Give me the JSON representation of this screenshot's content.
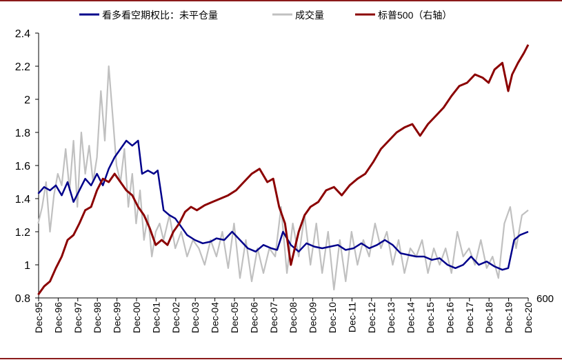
{
  "chart_data": {
    "type": "line",
    "title": "",
    "xlabel": "",
    "ylabel": "",
    "ylim": [
      0.8,
      2.4
    ],
    "yticks": [
      "2.4",
      "2.2",
      "2",
      "1.8",
      "1.6",
      "1.4",
      "1.2",
      "1",
      "0.8"
    ],
    "ytick_values": [
      2.4,
      2.2,
      2.0,
      1.8,
      1.6,
      1.4,
      1.2,
      1.0,
      0.8
    ],
    "secondary_axis_label": "600",
    "x_range": [
      1995.92,
      2020.92
    ],
    "categories": [
      "Dec-95",
      "Dec-96",
      "Dec-97",
      "Dec-98",
      "Dec-99",
      "Dec-00",
      "Dec-01",
      "Dec-02",
      "Dec-03",
      "Dec-04",
      "Dec-05",
      "Dec-06",
      "Dec-07",
      "Dec-08",
      "Dec-09",
      "Dec-10",
      "Dec-11",
      "Dec-12",
      "Dec-13",
      "Dec-14",
      "Dec-15",
      "Dec-16",
      "Dec-17",
      "Dec-18",
      "Dec-19",
      "Dec-20"
    ],
    "category_x": [
      1995.92,
      1996.92,
      1997.92,
      1998.92,
      1999.92,
      2000.92,
      2001.92,
      2002.92,
      2003.92,
      2004.92,
      2005.92,
      2006.92,
      2007.92,
      2008.92,
      2009.92,
      2010.92,
      2011.92,
      2012.92,
      2013.92,
      2014.92,
      2015.92,
      2016.92,
      2017.92,
      2018.92,
      2019.92,
      2020.92
    ],
    "legend_position": "top",
    "series": [
      {
        "name": "看多看空期权比：未平仓量",
        "color": "#00008b",
        "x": [
          1995.9,
          1996.2,
          1996.5,
          1996.8,
          1997.1,
          1997.4,
          1997.7,
          1998.0,
          1998.3,
          1998.6,
          1998.9,
          1999.2,
          1999.5,
          1999.8,
          2000.1,
          2000.4,
          2000.7,
          2001.0,
          2001.2,
          2001.5,
          2001.8,
          2002.0,
          2002.3,
          2002.6,
          2002.9,
          2003.2,
          2003.5,
          2003.9,
          2004.3,
          2004.7,
          2005.0,
          2005.4,
          2005.8,
          2006.2,
          2006.6,
          2007.0,
          2007.4,
          2007.8,
          2008.1,
          2008.4,
          2008.8,
          2009.2,
          2009.6,
          2010.0,
          2010.4,
          2010.8,
          2011.2,
          2011.6,
          2012.0,
          2012.4,
          2012.8,
          2013.2,
          2013.6,
          2014.0,
          2014.4,
          2014.8,
          2015.2,
          2015.6,
          2016.0,
          2016.4,
          2016.8,
          2017.2,
          2017.6,
          2018.0,
          2018.4,
          2018.8,
          2019.2,
          2019.6,
          2019.9,
          2020.2,
          2020.5,
          2020.92
        ],
        "values": [
          1.43,
          1.47,
          1.45,
          1.48,
          1.42,
          1.5,
          1.38,
          1.45,
          1.52,
          1.48,
          1.55,
          1.48,
          1.58,
          1.65,
          1.7,
          1.75,
          1.72,
          1.75,
          1.55,
          1.57,
          1.55,
          1.57,
          1.33,
          1.3,
          1.28,
          1.23,
          1.18,
          1.15,
          1.13,
          1.14,
          1.16,
          1.15,
          1.2,
          1.15,
          1.1,
          1.08,
          1.12,
          1.1,
          1.09,
          1.2,
          1.12,
          1.08,
          1.13,
          1.11,
          1.1,
          1.11,
          1.12,
          1.09,
          1.1,
          1.13,
          1.1,
          1.12,
          1.15,
          1.12,
          1.07,
          1.06,
          1.05,
          1.05,
          1.03,
          1.04,
          1.0,
          0.98,
          1.0,
          1.05,
          1.0,
          1.02,
          0.99,
          0.97,
          0.98,
          1.15,
          1.18,
          1.2
        ]
      },
      {
        "name": "成交量",
        "color": "#c0c0c0",
        "x": [
          1995.9,
          1996.1,
          1996.3,
          1996.5,
          1996.7,
          1996.9,
          1997.1,
          1997.3,
          1997.5,
          1997.7,
          1997.9,
          1998.1,
          1998.3,
          1998.5,
          1998.7,
          1998.9,
          1999.1,
          1999.3,
          1999.5,
          1999.7,
          1999.9,
          2000.1,
          2000.3,
          2000.5,
          2000.7,
          2000.9,
          2001.1,
          2001.3,
          2001.5,
          2001.7,
          2001.9,
          2002.1,
          2002.3,
          2002.6,
          2002.9,
          2003.2,
          2003.5,
          2003.8,
          2004.1,
          2004.4,
          2004.7,
          2005.0,
          2005.3,
          2005.6,
          2005.9,
          2006.2,
          2006.5,
          2006.8,
          2007.1,
          2007.4,
          2007.7,
          2008.0,
          2008.3,
          2008.6,
          2008.9,
          2009.2,
          2009.5,
          2009.8,
          2010.1,
          2010.4,
          2010.7,
          2011.0,
          2011.3,
          2011.6,
          2011.9,
          2012.2,
          2012.5,
          2012.8,
          2013.1,
          2013.4,
          2013.7,
          2014.0,
          2014.3,
          2014.6,
          2014.9,
          2015.2,
          2015.5,
          2015.8,
          2016.1,
          2016.4,
          2016.7,
          2017.0,
          2017.3,
          2017.6,
          2017.9,
          2018.2,
          2018.5,
          2018.8,
          2019.1,
          2019.4,
          2019.7,
          2020.0,
          2020.3,
          2020.6,
          2020.92
        ],
        "values": [
          1.25,
          1.35,
          1.5,
          1.2,
          1.42,
          1.55,
          1.48,
          1.7,
          1.45,
          1.75,
          1.35,
          1.8,
          1.55,
          1.72,
          1.5,
          1.65,
          2.05,
          1.75,
          2.2,
          1.9,
          1.6,
          1.5,
          1.7,
          1.35,
          1.55,
          1.25,
          1.45,
          1.15,
          1.3,
          1.05,
          1.2,
          1.25,
          1.15,
          1.3,
          1.1,
          1.2,
          1.05,
          1.15,
          1.1,
          1.0,
          1.15,
          1.05,
          1.2,
          0.98,
          1.25,
          0.92,
          1.15,
          0.9,
          1.1,
          0.95,
          1.1,
          1.05,
          1.35,
          0.95,
          1.25,
          1.05,
          1.3,
          1.0,
          1.25,
          0.95,
          1.2,
          0.85,
          1.15,
          0.9,
          1.2,
          1.0,
          1.15,
          1.05,
          1.25,
          1.1,
          1.2,
          1.0,
          1.15,
          0.95,
          1.1,
          1.05,
          1.15,
          0.95,
          1.1,
          1.0,
          1.1,
          0.95,
          1.2,
          1.05,
          1.1,
          1.0,
          1.15,
          0.98,
          1.05,
          0.92,
          1.25,
          1.35,
          1.1,
          1.3,
          1.33
        ]
      },
      {
        "name": "标普500（右轴）",
        "color": "#8b0000",
        "x": [
          1995.9,
          1996.2,
          1996.5,
          1996.8,
          1997.1,
          1997.4,
          1997.7,
          1998.0,
          1998.3,
          1998.6,
          1998.9,
          1999.2,
          1999.5,
          1999.8,
          2000.1,
          2000.4,
          2000.7,
          2001.0,
          2001.3,
          2001.6,
          2001.9,
          2002.2,
          2002.5,
          2002.8,
          2003.1,
          2003.4,
          2003.7,
          2004.0,
          2004.4,
          2004.8,
          2005.2,
          2005.6,
          2006.0,
          2006.4,
          2006.8,
          2007.2,
          2007.6,
          2007.9,
          2008.2,
          2008.5,
          2008.8,
          2009.2,
          2009.5,
          2009.8,
          2010.2,
          2010.6,
          2011.0,
          2011.4,
          2011.8,
          2012.2,
          2012.6,
          2013.0,
          2013.4,
          2013.8,
          2014.2,
          2014.6,
          2015.0,
          2015.4,
          2015.8,
          2016.2,
          2016.6,
          2017.0,
          2017.4,
          2017.8,
          2018.2,
          2018.6,
          2018.9,
          2019.2,
          2019.6,
          2019.9,
          2020.1,
          2020.4,
          2020.7,
          2020.92
        ],
        "values": [
          0.82,
          0.87,
          0.9,
          0.98,
          1.05,
          1.15,
          1.18,
          1.25,
          1.33,
          1.35,
          1.45,
          1.52,
          1.5,
          1.55,
          1.5,
          1.45,
          1.42,
          1.35,
          1.3,
          1.22,
          1.12,
          1.15,
          1.12,
          1.2,
          1.25,
          1.32,
          1.35,
          1.33,
          1.36,
          1.38,
          1.4,
          1.42,
          1.45,
          1.5,
          1.55,
          1.58,
          1.5,
          1.52,
          1.35,
          1.25,
          1.0,
          1.2,
          1.3,
          1.35,
          1.38,
          1.45,
          1.47,
          1.42,
          1.48,
          1.52,
          1.55,
          1.62,
          1.7,
          1.75,
          1.8,
          1.83,
          1.85,
          1.78,
          1.85,
          1.9,
          1.95,
          2.02,
          2.08,
          2.1,
          2.15,
          2.13,
          2.1,
          2.18,
          2.22,
          2.05,
          2.15,
          2.22,
          2.28,
          2.33
        ]
      }
    ]
  }
}
